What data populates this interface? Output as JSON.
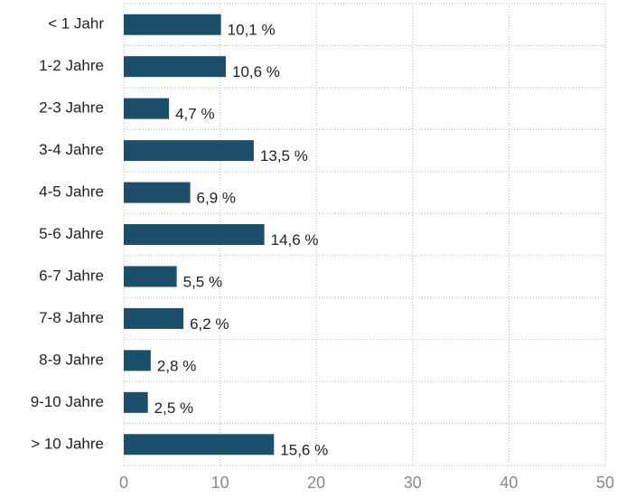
{
  "chart_data": {
    "type": "bar",
    "orientation": "horizontal",
    "categories": [
      "< 1 Jahr",
      "1-2 Jahre",
      "2-3 Jahre",
      "3-4 Jahre",
      "4-5 Jahre",
      "5-6 Jahre",
      "6-7 Jahre",
      "7-8 Jahre",
      "8-9 Jahre",
      "9-10 Jahre",
      "> 10 Jahre"
    ],
    "values": [
      10.1,
      10.6,
      4.7,
      13.5,
      6.9,
      14.6,
      5.5,
      6.2,
      2.8,
      2.5,
      15.6
    ],
    "value_labels": [
      "10,1 %",
      "10,6 %",
      "4,7 %",
      "13,5 %",
      "6,9 %",
      "14,6 %",
      "5,5 %",
      "6,2 %",
      "2,8 %",
      "2,5 %",
      "15,6 %"
    ],
    "color": "#1b4f6b",
    "xlim": [
      0,
      50
    ],
    "xticks": [
      0,
      10,
      20,
      30,
      40,
      50
    ],
    "grid": true
  }
}
